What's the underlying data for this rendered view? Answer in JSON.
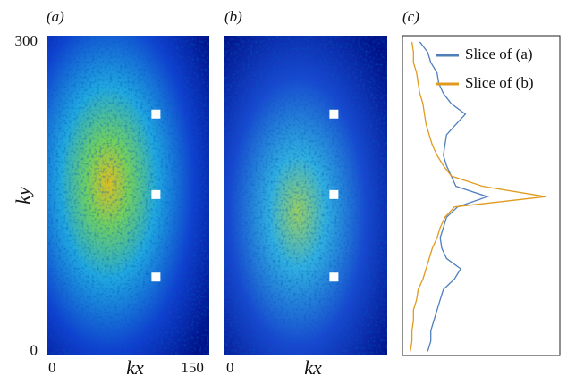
{
  "chart_data": [
    {
      "type": "heatmap",
      "panel_label": "(a)",
      "xlabel": "kx",
      "ylabel": "ky",
      "xlim": [
        -6,
        168
      ],
      "ylim": [
        -4,
        306
      ],
      "xticks": [
        0,
        150
      ],
      "yticks": [
        0,
        300
      ],
      "markers": {
        "kx": [
          111,
          111,
          111
        ],
        "ky": [
          230,
          152,
          72
        ],
        "color": "#ffffff"
      }
    },
    {
      "type": "heatmap",
      "panel_label": "(b)",
      "xlabel": "kx",
      "xlim": [
        -6,
        168
      ],
      "ylim": [
        -4,
        306
      ],
      "xticks": [
        0
      ],
      "markers": {
        "kx": [
          111,
          111,
          111
        ],
        "ky": [
          230,
          152,
          72
        ],
        "color": "#ffffff"
      }
    },
    {
      "type": "line",
      "panel_label": "(c)",
      "xlim": [
        0,
        100
      ],
      "ylim": [
        -4,
        306
      ],
      "legend": "upper right",
      "y": [
        0,
        10,
        20,
        30,
        40,
        50,
        60,
        70,
        80,
        90,
        100,
        110,
        120,
        130,
        140,
        150,
        160,
        170,
        180,
        190,
        200,
        210,
        220,
        230,
        240,
        250,
        260,
        270,
        280,
        290,
        300
      ],
      "series": [
        {
          "name": "Slice of (a)",
          "color": "#4f7fba",
          "values": [
            16,
            18,
            18,
            20,
            22,
            24,
            26,
            33,
            37,
            28,
            25,
            24,
            26,
            28,
            35,
            54,
            34,
            31,
            28,
            26,
            27,
            28,
            34,
            40,
            31,
            26,
            23,
            22,
            18,
            16,
            11
          ]
        },
        {
          "name": "Slice of (b)",
          "color": "#e09a1e",
          "values": [
            5,
            6,
            6,
            7,
            7,
            9,
            10,
            13,
            15,
            17,
            19,
            22,
            24,
            27,
            33,
            91,
            51,
            31,
            26,
            22,
            19,
            17,
            15,
            14,
            13,
            11,
            10,
            9,
            7,
            7,
            6
          ]
        }
      ]
    }
  ]
}
